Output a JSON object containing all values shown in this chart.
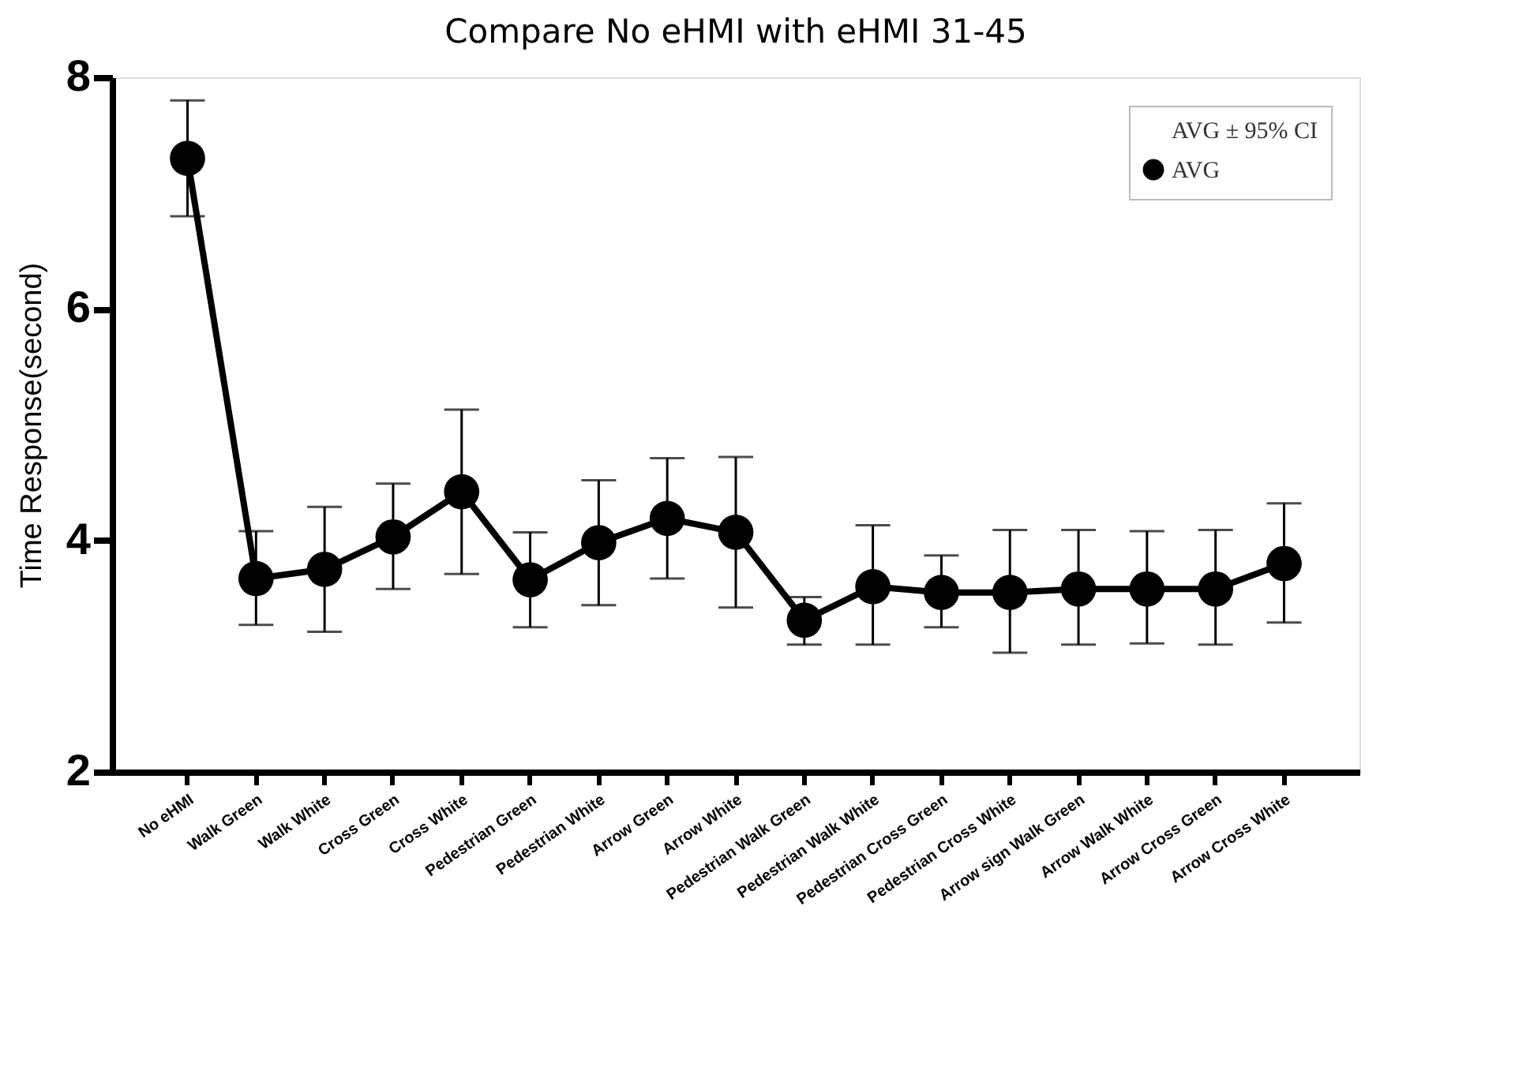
{
  "chart_data": {
    "type": "line",
    "title": "Compare No eHMI with eHMI 31-45",
    "ylabel": "Time Response(second)",
    "categories": [
      "No eHMI",
      "Walk Green",
      "Walk White",
      "Cross Green",
      "Cross White",
      "Pedestrian Green",
      "Pedestrian White",
      "Arrow Green",
      "Arrow White",
      "Pedestrian Walk Green",
      "Pedestrian Walk White",
      "Pedestrian Cross Green",
      "Pedestrian Cross White",
      "Arrow sign Walk Green",
      "Arrow Walk White",
      "Arrow Cross Green",
      "Arrow Cross White"
    ],
    "series": [
      {
        "name": "AVG",
        "color": "#000000",
        "values": [
          7.3,
          3.67,
          3.75,
          4.03,
          4.42,
          3.66,
          3.98,
          4.19,
          4.07,
          3.31,
          3.6,
          3.55,
          3.55,
          3.58,
          3.58,
          3.58,
          3.8
        ],
        "errors": [
          [
            6.8,
            7.8
          ],
          [
            3.27,
            4.08
          ],
          [
            3.21,
            4.29
          ],
          [
            3.58,
            4.49
          ],
          [
            3.71,
            5.13
          ],
          [
            3.25,
            4.07
          ],
          [
            3.44,
            4.52
          ],
          [
            3.67,
            4.71
          ],
          [
            3.42,
            4.72
          ],
          [
            3.1,
            3.51
          ],
          [
            3.1,
            4.13
          ],
          [
            3.25,
            3.87
          ],
          [
            3.03,
            4.09
          ],
          [
            3.1,
            4.09
          ],
          [
            3.11,
            4.08
          ],
          [
            3.1,
            4.09
          ],
          [
            3.29,
            4.32
          ]
        ]
      }
    ],
    "annotations": [
      "AVG ± 95% CI"
    ],
    "ylim": [
      2,
      8
    ],
    "yticks": [
      2,
      4,
      6,
      8
    ],
    "marker": "circle",
    "line_style": "solid",
    "legend": "top right"
  }
}
